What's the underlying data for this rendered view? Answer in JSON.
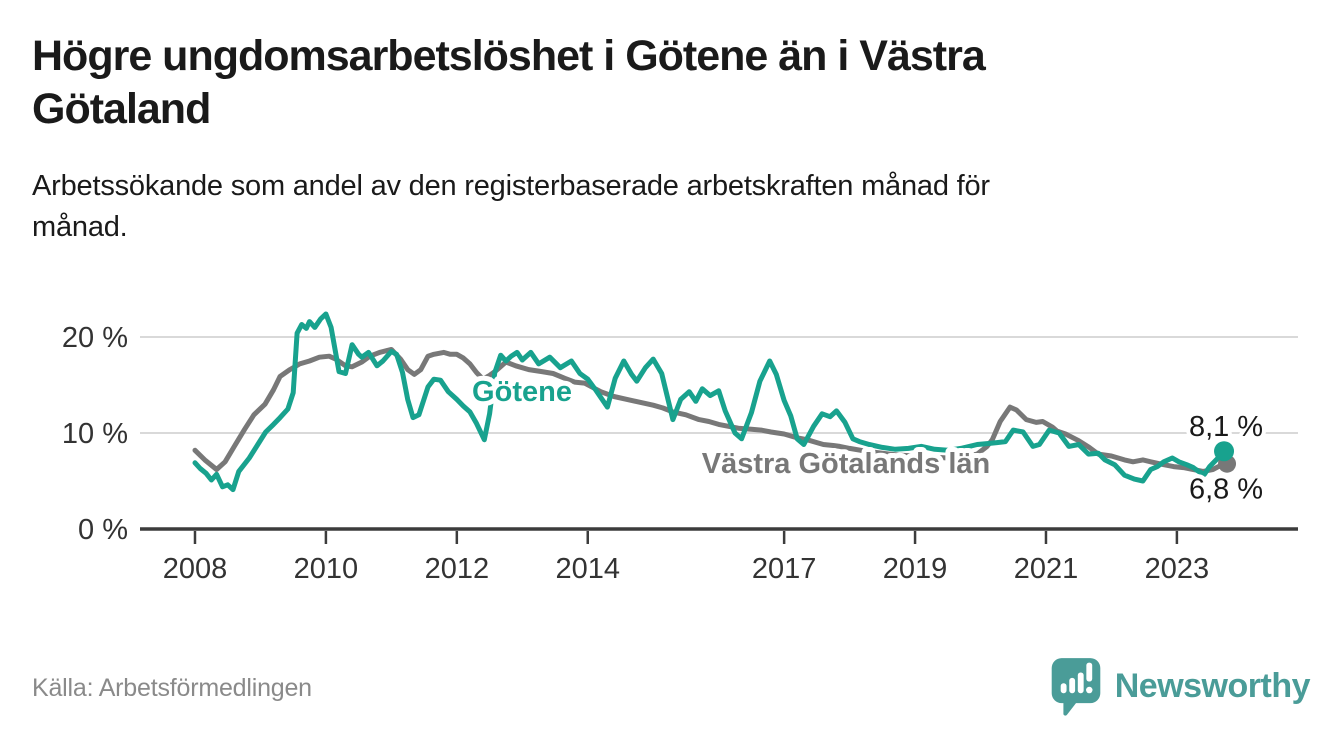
{
  "header": {
    "title_lines": [
      "Högre ungdomsarbetslöshet i Götene än i Västra",
      "Götaland"
    ],
    "subtitle_lines": [
      "Arbetssökande som andel av den registerbaserade arbetskraften månad för",
      "månad."
    ]
  },
  "footer": {
    "source": "Källa: Arbetsförmedlingen",
    "brand": "Newsworthy"
  },
  "colors": {
    "teal": "#18a28e",
    "gray": "#787878",
    "axis": "#3c3c3c",
    "grid": "#d9d9d9",
    "text": "#1a1a1a",
    "tick_text": "#333333",
    "muted": "#8a8a8a",
    "brand": "#4a9c98"
  },
  "chart_data": {
    "type": "line",
    "unit": "%",
    "grid": "horizontal-only",
    "x_range": [
      2007.16,
      2024.85
    ],
    "y_range": [
      0,
      23
    ],
    "y_ticks": [
      {
        "value": 0,
        "label": "0 %"
      },
      {
        "value": 10,
        "label": "10 %"
      },
      {
        "value": 20,
        "label": "20 %"
      }
    ],
    "x_ticks": [
      {
        "year": 2008,
        "label": "2008"
      },
      {
        "year": 2010,
        "label": "2010"
      },
      {
        "year": 2012,
        "label": "2012"
      },
      {
        "year": 2014,
        "label": "2014"
      },
      {
        "year": 2017,
        "label": "2017"
      },
      {
        "year": 2019,
        "label": "2019"
      },
      {
        "year": 2021,
        "label": "2021"
      },
      {
        "year": 2023,
        "label": "2023"
      }
    ],
    "series": [
      {
        "name": "Västra Götalands län",
        "color": "#787878",
        "end_label": "6,8 %",
        "end_value": 6.8,
        "points": [
          [
            2008.0,
            8.2
          ],
          [
            2008.15,
            7.2
          ],
          [
            2008.33,
            6.2
          ],
          [
            2008.46,
            7.0
          ],
          [
            2008.6,
            8.6
          ],
          [
            2008.76,
            10.4
          ],
          [
            2008.9,
            11.9
          ],
          [
            2009.07,
            13.0
          ],
          [
            2009.2,
            14.5
          ],
          [
            2009.3,
            15.9
          ],
          [
            2009.45,
            16.6
          ],
          [
            2009.6,
            17.2
          ],
          [
            2009.75,
            17.5
          ],
          [
            2009.9,
            17.9
          ],
          [
            2010.05,
            18.0
          ],
          [
            2010.15,
            17.7
          ],
          [
            2010.3,
            17.0
          ],
          [
            2010.4,
            16.9
          ],
          [
            2010.55,
            17.4
          ],
          [
            2010.67,
            18.0
          ],
          [
            2010.82,
            18.4
          ],
          [
            2010.94,
            18.6
          ],
          [
            2011.0,
            18.7
          ],
          [
            2011.14,
            17.7
          ],
          [
            2011.25,
            16.6
          ],
          [
            2011.35,
            16.1
          ],
          [
            2011.45,
            16.6
          ],
          [
            2011.56,
            18.0
          ],
          [
            2011.65,
            18.2
          ],
          [
            2011.8,
            18.4
          ],
          [
            2011.9,
            18.2
          ],
          [
            2012.0,
            18.2
          ],
          [
            2012.1,
            17.8
          ],
          [
            2012.2,
            17.2
          ],
          [
            2012.3,
            16.3
          ],
          [
            2012.4,
            15.6
          ],
          [
            2012.5,
            16.0
          ],
          [
            2012.6,
            16.5
          ],
          [
            2012.75,
            17.4
          ],
          [
            2012.9,
            17.0
          ],
          [
            2013.1,
            16.6
          ],
          [
            2013.3,
            16.4
          ],
          [
            2013.47,
            16.2
          ],
          [
            2013.65,
            15.7
          ],
          [
            2013.8,
            15.3
          ],
          [
            2013.95,
            15.2
          ],
          [
            2014.2,
            14.3
          ],
          [
            2014.4,
            13.8
          ],
          [
            2014.6,
            13.5
          ],
          [
            2014.8,
            13.2
          ],
          [
            2015.0,
            12.9
          ],
          [
            2015.15,
            12.6
          ],
          [
            2015.3,
            12.2
          ],
          [
            2015.5,
            11.9
          ],
          [
            2015.7,
            11.4
          ],
          [
            2015.85,
            11.2
          ],
          [
            2016.0,
            10.9
          ],
          [
            2016.15,
            10.7
          ],
          [
            2016.3,
            10.5
          ],
          [
            2016.5,
            10.4
          ],
          [
            2016.65,
            10.3
          ],
          [
            2016.8,
            10.1
          ],
          [
            2017.0,
            9.9
          ],
          [
            2017.2,
            9.5
          ],
          [
            2017.35,
            9.3
          ],
          [
            2017.5,
            9.0
          ],
          [
            2017.6,
            8.8
          ],
          [
            2017.75,
            8.7
          ],
          [
            2017.85,
            8.6
          ],
          [
            2018.0,
            8.4
          ],
          [
            2018.25,
            8.1
          ],
          [
            2018.5,
            7.9
          ],
          [
            2018.75,
            7.7
          ],
          [
            2019.0,
            7.6
          ],
          [
            2019.25,
            7.5
          ],
          [
            2019.5,
            7.4
          ],
          [
            2019.75,
            7.5
          ],
          [
            2019.95,
            7.8
          ],
          [
            2020.1,
            8.6
          ],
          [
            2020.18,
            9.3
          ],
          [
            2020.3,
            11.2
          ],
          [
            2020.45,
            12.7
          ],
          [
            2020.55,
            12.4
          ],
          [
            2020.7,
            11.4
          ],
          [
            2020.85,
            11.1
          ],
          [
            2020.95,
            11.2
          ],
          [
            2021.1,
            10.6
          ],
          [
            2021.17,
            10.2
          ],
          [
            2021.3,
            9.9
          ],
          [
            2021.5,
            9.2
          ],
          [
            2021.66,
            8.5
          ],
          [
            2021.8,
            7.8
          ],
          [
            2022.0,
            7.6
          ],
          [
            2022.2,
            7.2
          ],
          [
            2022.33,
            7.0
          ],
          [
            2022.48,
            7.2
          ],
          [
            2022.6,
            7.0
          ],
          [
            2022.8,
            6.7
          ],
          [
            2022.95,
            6.5
          ],
          [
            2023.1,
            6.4
          ],
          [
            2023.25,
            6.2
          ],
          [
            2023.4,
            6.0
          ],
          [
            2023.55,
            6.2
          ],
          [
            2023.72,
            6.8
          ]
        ]
      },
      {
        "name": "Götene",
        "color": "#18a28e",
        "end_label": "8,1 %",
        "end_value": 8.1,
        "points": [
          [
            2008.0,
            6.9
          ],
          [
            2008.08,
            6.3
          ],
          [
            2008.17,
            5.8
          ],
          [
            2008.25,
            5.1
          ],
          [
            2008.33,
            5.7
          ],
          [
            2008.42,
            4.4
          ],
          [
            2008.5,
            4.6
          ],
          [
            2008.58,
            4.1
          ],
          [
            2008.67,
            6.0
          ],
          [
            2008.83,
            7.4
          ],
          [
            2008.96,
            8.8
          ],
          [
            2009.08,
            10.1
          ],
          [
            2009.2,
            10.9
          ],
          [
            2009.3,
            11.6
          ],
          [
            2009.42,
            12.5
          ],
          [
            2009.5,
            14.2
          ],
          [
            2009.56,
            20.4
          ],
          [
            2009.63,
            21.3
          ],
          [
            2009.7,
            20.9
          ],
          [
            2009.75,
            21.6
          ],
          [
            2009.83,
            21.0
          ],
          [
            2009.92,
            21.9
          ],
          [
            2010.0,
            22.4
          ],
          [
            2010.08,
            21.0
          ],
          [
            2010.2,
            16.4
          ],
          [
            2010.3,
            16.2
          ],
          [
            2010.4,
            19.2
          ],
          [
            2010.5,
            18.2
          ],
          [
            2010.55,
            17.9
          ],
          [
            2010.65,
            18.4
          ],
          [
            2010.78,
            17.0
          ],
          [
            2010.87,
            17.5
          ],
          [
            2011.0,
            18.5
          ],
          [
            2011.08,
            18.2
          ],
          [
            2011.17,
            16.3
          ],
          [
            2011.25,
            13.5
          ],
          [
            2011.33,
            11.6
          ],
          [
            2011.42,
            11.9
          ],
          [
            2011.56,
            14.8
          ],
          [
            2011.65,
            15.6
          ],
          [
            2011.75,
            15.5
          ],
          [
            2011.87,
            14.3
          ],
          [
            2012.0,
            13.5
          ],
          [
            2012.1,
            12.8
          ],
          [
            2012.2,
            12.2
          ],
          [
            2012.3,
            11.0
          ],
          [
            2012.42,
            9.3
          ],
          [
            2012.5,
            12.0
          ],
          [
            2012.58,
            16.3
          ],
          [
            2012.67,
            18.1
          ],
          [
            2012.75,
            17.5
          ],
          [
            2012.83,
            18.0
          ],
          [
            2012.92,
            18.4
          ],
          [
            2013.0,
            17.6
          ],
          [
            2013.13,
            18.4
          ],
          [
            2013.25,
            17.2
          ],
          [
            2013.42,
            17.9
          ],
          [
            2013.58,
            16.8
          ],
          [
            2013.75,
            17.5
          ],
          [
            2013.88,
            16.2
          ],
          [
            2014.0,
            15.6
          ],
          [
            2014.13,
            14.4
          ],
          [
            2014.3,
            12.7
          ],
          [
            2014.42,
            15.7
          ],
          [
            2014.55,
            17.5
          ],
          [
            2014.67,
            16.1
          ],
          [
            2014.75,
            15.4
          ],
          [
            2014.88,
            16.8
          ],
          [
            2015.0,
            17.7
          ],
          [
            2015.13,
            16.2
          ],
          [
            2015.3,
            11.4
          ],
          [
            2015.42,
            13.5
          ],
          [
            2015.55,
            14.3
          ],
          [
            2015.65,
            13.3
          ],
          [
            2015.75,
            14.6
          ],
          [
            2015.87,
            13.9
          ],
          [
            2016.0,
            14.4
          ],
          [
            2016.1,
            12.3
          ],
          [
            2016.25,
            10.0
          ],
          [
            2016.35,
            9.4
          ],
          [
            2016.5,
            12.1
          ],
          [
            2016.63,
            15.4
          ],
          [
            2016.78,
            17.5
          ],
          [
            2016.88,
            16.1
          ],
          [
            2017.0,
            13.4
          ],
          [
            2017.1,
            11.8
          ],
          [
            2017.2,
            9.4
          ],
          [
            2017.3,
            8.8
          ],
          [
            2017.45,
            10.7
          ],
          [
            2017.58,
            12.0
          ],
          [
            2017.7,
            11.7
          ],
          [
            2017.8,
            12.3
          ],
          [
            2017.93,
            11.1
          ],
          [
            2018.05,
            9.4
          ],
          [
            2018.15,
            9.1
          ],
          [
            2018.3,
            8.8
          ],
          [
            2018.5,
            8.5
          ],
          [
            2018.7,
            8.3
          ],
          [
            2018.9,
            8.4
          ],
          [
            2019.1,
            8.6
          ],
          [
            2019.3,
            8.3
          ],
          [
            2019.5,
            8.2
          ],
          [
            2019.7,
            8.4
          ],
          [
            2019.95,
            8.8
          ],
          [
            2020.1,
            8.9
          ],
          [
            2020.25,
            9.0
          ],
          [
            2020.38,
            9.1
          ],
          [
            2020.5,
            10.3
          ],
          [
            2020.65,
            10.1
          ],
          [
            2020.8,
            8.6
          ],
          [
            2020.9,
            8.8
          ],
          [
            2021.05,
            10.3
          ],
          [
            2021.2,
            10.0
          ],
          [
            2021.35,
            8.6
          ],
          [
            2021.5,
            8.8
          ],
          [
            2021.65,
            7.8
          ],
          [
            2021.8,
            7.9
          ],
          [
            2021.9,
            7.2
          ],
          [
            2022.05,
            6.7
          ],
          [
            2022.2,
            5.6
          ],
          [
            2022.35,
            5.2
          ],
          [
            2022.48,
            5.0
          ],
          [
            2022.6,
            6.2
          ],
          [
            2022.7,
            6.5
          ],
          [
            2022.8,
            7.0
          ],
          [
            2022.93,
            7.4
          ],
          [
            2023.03,
            7.0
          ],
          [
            2023.15,
            6.7
          ],
          [
            2023.25,
            6.4
          ],
          [
            2023.33,
            6.0
          ],
          [
            2023.42,
            5.7
          ],
          [
            2023.5,
            6.5
          ],
          [
            2023.6,
            7.2
          ],
          [
            2023.72,
            8.1
          ]
        ]
      }
    ]
  }
}
